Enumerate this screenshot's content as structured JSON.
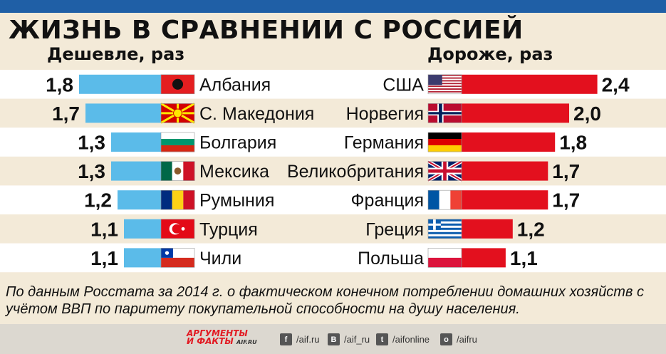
{
  "title": "ЖИЗНЬ В СРАВНЕНИИ С РОССИЕЙ",
  "subtitle_left": "Дешевле, раз",
  "subtitle_right": "Дороже, раз",
  "colors": {
    "cheaper": "#5bbbe9",
    "pricier": "#e3101e",
    "row_alt": "#ffffff",
    "bg": "#f3ead8",
    "topbar": "#1f5fa6"
  },
  "chart_data": [
    {
      "type": "bar",
      "title": "Дешевле, раз",
      "orientation": "horizontal",
      "categories": [
        "Албания",
        "С. Македония",
        "Болгария",
        "Мексика",
        "Румыния",
        "Турция",
        "Чили"
      ],
      "value_labels": [
        "1,8",
        "1,7",
        "1,3",
        "1,3",
        "1,2",
        "1,1",
        "1,1"
      ],
      "values": [
        1.8,
        1.7,
        1.3,
        1.3,
        1.2,
        1.1,
        1.1
      ],
      "flags": [
        "albania",
        "macedonia",
        "bulgaria",
        "mexico",
        "romania",
        "turkey",
        "chile"
      ]
    },
    {
      "type": "bar",
      "title": "Дороже, раз",
      "orientation": "horizontal",
      "categories": [
        "США",
        "Норвегия",
        "Германия",
        "Великобритания",
        "Франция",
        "Греция",
        "Польша"
      ],
      "value_labels": [
        "2,4",
        "2,0",
        "1,8",
        "1,7",
        "1,7",
        "1,2",
        "1,1"
      ],
      "values": [
        2.4,
        2.0,
        1.8,
        1.7,
        1.7,
        1.2,
        1.1
      ],
      "flags": [
        "usa",
        "norway",
        "germany",
        "uk",
        "france",
        "greece",
        "poland"
      ]
    }
  ],
  "footnote": "По данным Росстата за 2014 г. о фактическом конечном потреблении домашних хозяйств с учётом ВВП по паритету покупательной способности на душу населения.",
  "footer": {
    "logo_line1": "АРГУМЕНТЫ",
    "logo_line2": "И ФАКТЫ",
    "logo_site": "AIF.RU",
    "social": [
      {
        "icon": "facebook-icon",
        "glyph": "f",
        "handle": "/aif.ru"
      },
      {
        "icon": "vk-icon",
        "glyph": "B",
        "handle": "/aif_ru"
      },
      {
        "icon": "twitter-icon",
        "glyph": "t",
        "handle": "/aifonline"
      },
      {
        "icon": "odnoklassniki-icon",
        "glyph": "o",
        "handle": "/aifru"
      }
    ]
  }
}
